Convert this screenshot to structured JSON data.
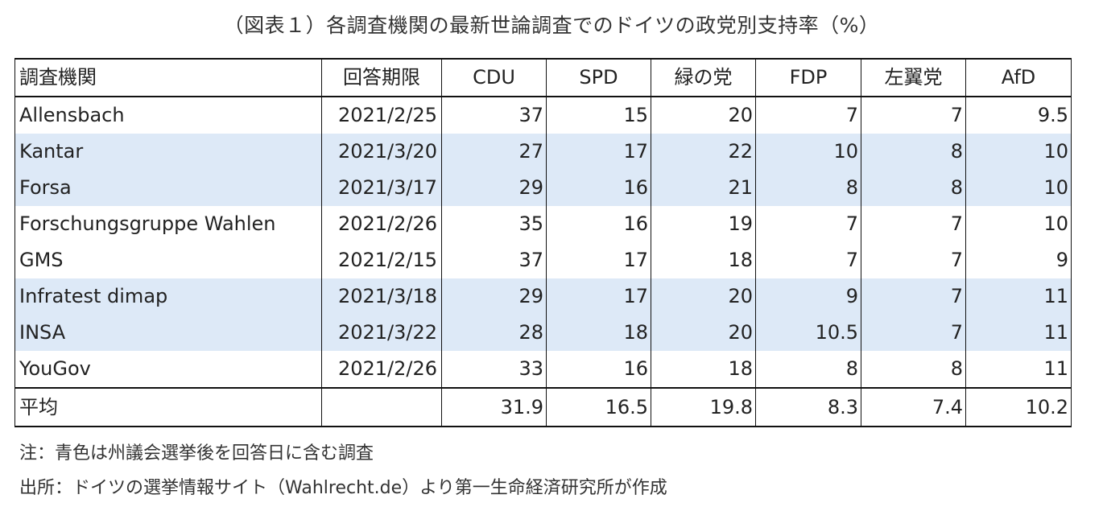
{
  "title": "（図表１）各調査機関の最新世論調査でのドイツの政党別支持率（%）",
  "columns": [
    "調査機関",
    "回答期限",
    "CDU",
    "SPD",
    "緑の党",
    "FDP",
    "左翼党",
    "AfD"
  ],
  "rows": [
    {
      "org": "Allensbach",
      "date": "2021/2/25",
      "values": [
        "37",
        "15",
        "20",
        "7",
        "7",
        "9.5"
      ],
      "highlight": false
    },
    {
      "org": "Kantar",
      "date": "2021/3/20",
      "values": [
        "27",
        "17",
        "22",
        "10",
        "8",
        "10"
      ],
      "highlight": true
    },
    {
      "org": "Forsa",
      "date": "2021/3/17",
      "values": [
        "29",
        "16",
        "21",
        "8",
        "8",
        "10"
      ],
      "highlight": true
    },
    {
      "org": "Forschungsgruppe Wahlen",
      "date": "2021/2/26",
      "values": [
        "35",
        "16",
        "19",
        "7",
        "7",
        "10"
      ],
      "highlight": false
    },
    {
      "org": "GMS",
      "date": "2021/2/15",
      "values": [
        "37",
        "17",
        "18",
        "7",
        "7",
        "9"
      ],
      "highlight": false
    },
    {
      "org": "Infratest dimap",
      "date": "2021/3/18",
      "values": [
        "29",
        "17",
        "20",
        "9",
        "7",
        "11"
      ],
      "highlight": true
    },
    {
      "org": "INSA",
      "date": "2021/3/22",
      "values": [
        "28",
        "18",
        "20",
        "10.5",
        "7",
        "11"
      ],
      "highlight": true
    },
    {
      "org": "YouGov",
      "date": "2021/2/26",
      "values": [
        "33",
        "16",
        "18",
        "8",
        "8",
        "11"
      ],
      "highlight": false
    }
  ],
  "average": {
    "label": "平均",
    "date": "",
    "values": [
      "31.9",
      "16.5",
      "19.8",
      "8.3",
      "7.4",
      "10.2"
    ]
  },
  "notes": {
    "note": "注：青色は州議会選挙後を回答日に含む調査",
    "source": "出所：ドイツの選挙情報サイト（Wahlrecht.de）より第一生命経済研究所が作成"
  },
  "colors": {
    "highlight_row": "#dde9f7",
    "border": "#111111"
  }
}
